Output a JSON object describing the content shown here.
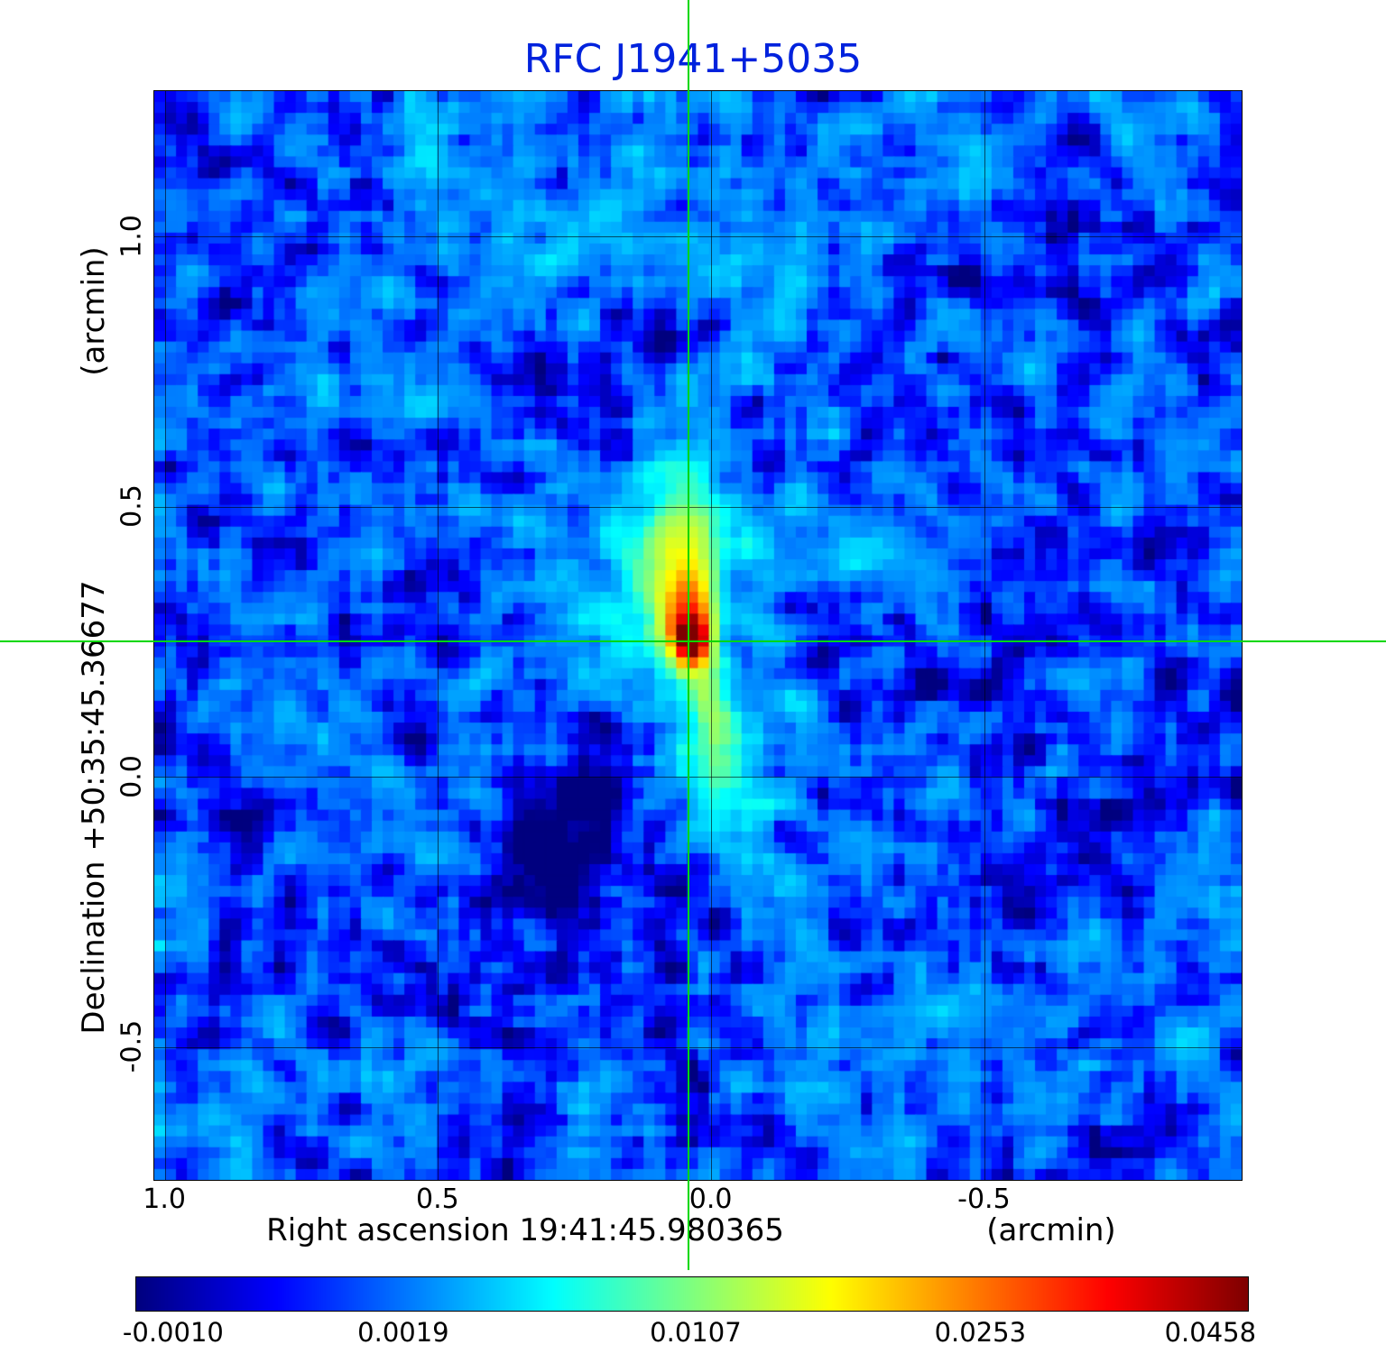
{
  "plot": {
    "title": "RFC J1941+5035",
    "title_color": "#0022dd",
    "ylabel": "Declination  +50:35:45.36677",
    "ylabel_unit": "(arcmin)",
    "xlabel": "Right ascension  19:41:45.980365",
    "xlabel_unit": "(arcmin)",
    "x_tick_labels": [
      "1.0",
      "0.5",
      "0.0",
      "-0.5"
    ],
    "y_tick_labels": [
      "1.0",
      "0.5",
      "0.0",
      "-0.5"
    ],
    "colorbar_labels": [
      "-0.0010",
      "0.0019",
      "0.0107",
      "0.0253",
      "0.0458"
    ],
    "crosshair_color": "#00d800",
    "grid_color": "rgba(0,0,0,0.6)"
  },
  "chart_data": {
    "type": "heatmap",
    "title": "RFC J1941+5035",
    "xlabel": "Right ascension 19:41:45.980365 (arcmin)",
    "ylabel": "Declination +50:35:45.36677 (arcmin)",
    "source_name": "RFC J1941+5035",
    "source_ra": "19:41:45.980365",
    "source_dec": "+50:35:45.36677",
    "x_range": [
      1.02,
      -0.97
    ],
    "y_range": [
      1.27,
      -0.745
    ],
    "x_ticks": [
      1.0,
      0.5,
      0.0,
      -0.5
    ],
    "y_ticks": [
      1.0,
      0.5,
      0.0,
      -0.5
    ],
    "grid": true,
    "colormap": "jet",
    "colorbar_orientation": "horizontal",
    "colorbar_ticks": [
      -0.001,
      0.0019,
      0.0107,
      0.0253,
      0.0458
    ],
    "colorbar_tick_positions": [
      0.034,
      0.241,
      0.504,
      0.76,
      0.967
    ],
    "intensity_anchors": [
      [
        -0.001,
        0.034
      ],
      [
        0.0019,
        0.241
      ],
      [
        0.0107,
        0.504
      ],
      [
        0.0253,
        0.76
      ],
      [
        0.0458,
        0.967
      ]
    ],
    "peak_value": 0.0458,
    "background_mean": 0.0013,
    "background_rms": 0.0013,
    "crosshair": {
      "ra_offset": 0.04,
      "dec_offset": 0.25
    },
    "morphology": "compact bright core at the crosshair with a curved cyan jet extending ~0.3 arcmin to the north and a fainter counter-extension to the south over a noisy blue background",
    "image": {
      "nx": 100,
      "ny": 100,
      "features": [
        {
          "x": 0.494,
          "y": 0.504,
          "amp": 0.04,
          "sx": 0.008,
          "sy": 0.011,
          "pa": 0
        },
        {
          "x": 0.493,
          "y": 0.497,
          "amp": 0.02,
          "sx": 0.013,
          "sy": 0.02,
          "pa": 6
        },
        {
          "x": 0.49,
          "y": 0.474,
          "amp": 0.012,
          "sx": 0.016,
          "sy": 0.03,
          "pa": 10
        },
        {
          "x": 0.483,
          "y": 0.44,
          "amp": 0.008,
          "sx": 0.02,
          "sy": 0.045,
          "pa": 14
        },
        {
          "x": 0.473,
          "y": 0.404,
          "amp": 0.0045,
          "sx": 0.027,
          "sy": 0.055,
          "pa": 16
        },
        {
          "x": 0.456,
          "y": 0.37,
          "amp": 0.002,
          "sx": 0.04,
          "sy": 0.05,
          "pa": 20
        },
        {
          "x": 0.504,
          "y": 0.545,
          "amp": 0.007,
          "sx": 0.014,
          "sy": 0.032,
          "pa": -12
        },
        {
          "x": 0.517,
          "y": 0.6,
          "amp": 0.0045,
          "sx": 0.02,
          "sy": 0.045,
          "pa": -16
        },
        {
          "x": 0.53,
          "y": 0.655,
          "amp": 0.0025,
          "sx": 0.028,
          "sy": 0.05,
          "pa": -18
        },
        {
          "x": 0.5,
          "y": 0.5,
          "amp": 0.0018,
          "sx": 0.09,
          "sy": 0.13,
          "pa": 0
        },
        {
          "x": 0.369,
          "y": 0.683,
          "amp": -0.0032,
          "sx": 0.032,
          "sy": 0.045,
          "pa": 0
        },
        {
          "x": 0.41,
          "y": 0.62,
          "amp": -0.0018,
          "sx": 0.02,
          "sy": 0.03,
          "pa": 0
        },
        {
          "x": 0.3,
          "y": 0.1,
          "amp": 0.0016,
          "sx": 0.13,
          "sy": 0.07,
          "pa": 0
        },
        {
          "x": 0.55,
          "y": 0.16,
          "amp": 0.0013,
          "sx": 0.1,
          "sy": 0.06,
          "pa": 0
        }
      ]
    }
  }
}
